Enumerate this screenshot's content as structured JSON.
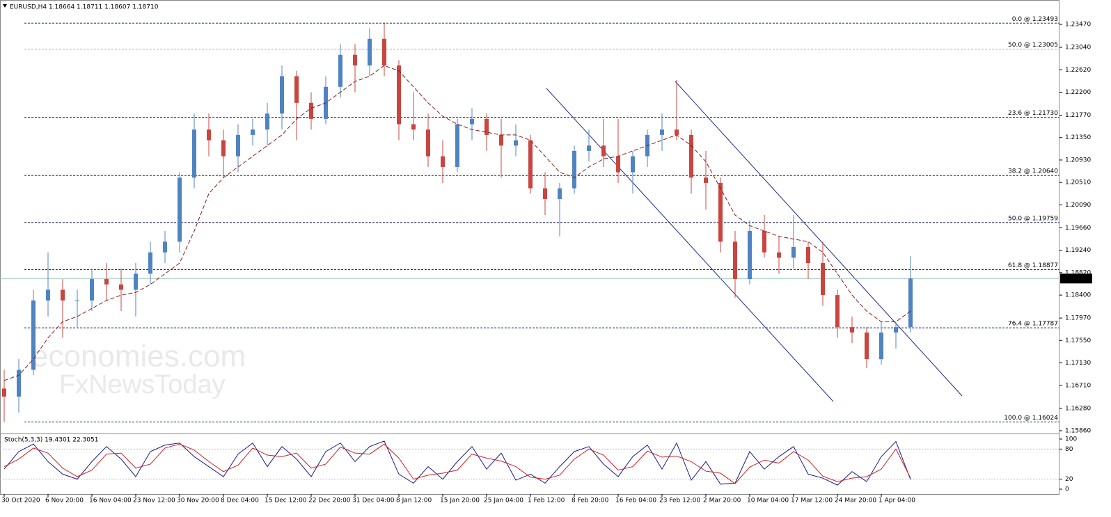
{
  "header": "EURUSD,H4  1.18664 1.18711 1.18607 1.18710",
  "watermark": [
    "economies.com",
    "FxNewsToday"
  ],
  "chart_data": [
    {
      "type": "candlestick",
      "categories": [
        "30 Oct 2020",
        null,
        null,
        "6 Nov 20:00",
        null,
        null,
        "16 Nov 04:00",
        null,
        null,
        "23 Nov 12:00",
        null,
        null,
        "30 Nov 20:00",
        null,
        null,
        "8 Dec 04:00",
        null,
        null,
        "15 Dec 12:00",
        null,
        null,
        "22 Dec 20:00",
        null,
        null,
        "31 Dec 04:00",
        null,
        null,
        "8 Jan 12:00",
        null,
        null,
        "15 Jan 20:00",
        null,
        null,
        "25 Jan 04:00",
        null,
        null,
        "1 Feb 12:00",
        null,
        null,
        "8 Feb 20:00",
        null,
        null,
        "16 Feb 04:00",
        null,
        null,
        "23 Feb 12:00",
        null,
        null,
        "2 Mar 20:00",
        null,
        null,
        "10 Mar 04:00",
        null,
        null,
        "17 Mar 12:00",
        null,
        null,
        "24 Mar 20:00",
        null,
        null,
        "1 Apr 04:00",
        null,
        null
      ],
      "open": [
        1.1665,
        1.165,
        1.17,
        1.183,
        1.185,
        1.183,
        1.183,
        1.187,
        1.186,
        1.185,
        1.188,
        1.192,
        1.194,
        1.206,
        1.215,
        1.213,
        1.21,
        1.214,
        1.215,
        1.218,
        1.225,
        1.22,
        1.217,
        1.223,
        1.229,
        1.227,
        1.232,
        1.227,
        1.216,
        1.215,
        1.21,
        1.208,
        1.216,
        1.217,
        1.214,
        1.212,
        1.213,
        1.204,
        1.202,
        1.204,
        1.211,
        1.212,
        1.21,
        1.207,
        1.21,
        1.214,
        1.215,
        1.214,
        1.206,
        1.205,
        1.194,
        1.187,
        1.196,
        1.192,
        1.191,
        1.193,
        1.19,
        1.184,
        1.178,
        1.177,
        1.172,
        1.177,
        1.178
      ],
      "high": [
        1.17,
        1.172,
        1.185,
        1.192,
        1.187,
        1.185,
        1.189,
        1.19,
        1.189,
        1.19,
        1.194,
        1.196,
        1.207,
        1.218,
        1.218,
        1.215,
        1.216,
        1.217,
        1.22,
        1.227,
        1.226,
        1.222,
        1.225,
        1.231,
        1.231,
        1.234,
        1.2349,
        1.228,
        1.222,
        1.218,
        1.213,
        1.217,
        1.219,
        1.218,
        1.217,
        1.216,
        1.214,
        1.207,
        1.205,
        1.212,
        1.215,
        1.217,
        1.217,
        1.211,
        1.215,
        1.218,
        1.2243,
        1.215,
        1.211,
        1.206,
        1.196,
        1.198,
        1.199,
        1.195,
        1.199,
        1.194,
        1.194,
        1.185,
        1.18,
        1.178,
        1.179,
        1.179,
        1.1913
      ],
      "low": [
        1.1602,
        1.162,
        1.169,
        1.18,
        1.176,
        1.178,
        1.181,
        1.183,
        1.181,
        1.18,
        1.186,
        1.19,
        1.192,
        1.204,
        1.21,
        1.206,
        1.207,
        1.212,
        1.212,
        1.215,
        1.213,
        1.215,
        1.216,
        1.221,
        1.222,
        1.225,
        1.225,
        1.213,
        1.213,
        1.208,
        1.205,
        1.207,
        1.213,
        1.211,
        1.206,
        1.21,
        1.203,
        1.199,
        1.195,
        1.203,
        1.209,
        1.208,
        1.205,
        1.203,
        1.208,
        1.211,
        1.213,
        1.203,
        1.2,
        1.192,
        1.1835,
        1.186,
        1.191,
        1.188,
        1.189,
        1.187,
        1.182,
        1.176,
        1.175,
        1.1703,
        1.171,
        1.174,
        1.177
      ],
      "close": [
        1.165,
        1.17,
        1.183,
        1.185,
        1.183,
        1.183,
        1.187,
        1.186,
        1.185,
        1.188,
        1.192,
        1.194,
        1.206,
        1.215,
        1.213,
        1.21,
        1.214,
        1.215,
        1.218,
        1.225,
        1.22,
        1.217,
        1.223,
        1.229,
        1.227,
        1.232,
        1.227,
        1.216,
        1.215,
        1.21,
        1.208,
        1.216,
        1.217,
        1.214,
        1.212,
        1.213,
        1.204,
        1.202,
        1.204,
        1.211,
        1.212,
        1.21,
        1.207,
        1.21,
        1.214,
        1.215,
        1.214,
        1.206,
        1.205,
        1.194,
        1.187,
        1.196,
        1.192,
        1.191,
        1.193,
        1.19,
        1.184,
        1.178,
        1.177,
        1.172,
        1.177,
        1.178,
        1.1871
      ],
      "ma": {
        "color": "#8b1a1a",
        "values": [
          1.168,
          1.169,
          1.172,
          1.176,
          1.179,
          1.18,
          1.1815,
          1.183,
          1.184,
          1.1845,
          1.186,
          1.188,
          1.19,
          1.196,
          1.203,
          1.206,
          1.208,
          1.21,
          1.212,
          1.214,
          1.217,
          1.219,
          1.22,
          1.222,
          1.224,
          1.225,
          1.227,
          1.226,
          1.223,
          1.22,
          1.2175,
          1.216,
          1.215,
          1.2145,
          1.214,
          1.214,
          1.213,
          1.21,
          1.207,
          1.206,
          1.208,
          1.2095,
          1.21,
          1.211,
          1.212,
          1.213,
          1.214,
          1.212,
          1.209,
          1.204,
          1.199,
          1.197,
          1.196,
          1.195,
          1.1945,
          1.194,
          1.192,
          1.188,
          1.184,
          1.181,
          1.179,
          1.179,
          1.181
        ]
      },
      "up_color": "#4f83c2",
      "down_color": "#c9453f",
      "ylim": [
        1.15821,
        1.23692
      ],
      "yticks": [
        {
          "value": 1.2347,
          "label": "1.23470"
        },
        {
          "value": 1.2304,
          "label": "1.23040"
        },
        {
          "value": 1.2262,
          "label": "1.22620"
        },
        {
          "value": 1.222,
          "label": "1.22200"
        },
        {
          "value": 1.2177,
          "label": "1.21770"
        },
        {
          "value": 1.2135,
          "label": "1.21350"
        },
        {
          "value": 1.2093,
          "label": "1.20930"
        },
        {
          "value": 1.2051,
          "label": "1.20510"
        },
        {
          "value": 1.2009,
          "label": "1.20090"
        },
        {
          "value": 1.1966,
          "label": "1.19660"
        },
        {
          "value": 1.1924,
          "label": "1.19240"
        },
        {
          "value": 1.1882,
          "label": "1.18820"
        },
        {
          "value": 1.184,
          "label": "1.18400"
        },
        {
          "value": 1.1797,
          "label": "1.17970"
        },
        {
          "value": 1.1755,
          "label": "1.17550"
        },
        {
          "value": 1.1713,
          "label": "1.17130"
        },
        {
          "value": 1.1671,
          "label": "1.16710"
        },
        {
          "value": 1.1628,
          "label": "1.16280"
        },
        {
          "value": 1.1586,
          "label": "1.15860"
        }
      ],
      "levels": [
        {
          "value": 1.23493,
          "label": "0.0 @ 1.23493",
          "color": "#1f2a6b"
        },
        {
          "value": 1.23005,
          "label": "50.0 @ 1.23005",
          "color": "#aaaaaa"
        },
        {
          "value": 1.2173,
          "label": "23.6 @ 1.21730",
          "color": "#1f2a6b"
        },
        {
          "value": 1.2064,
          "label": "38.2 @ 1.20640",
          "color": "#1f2a6b"
        },
        {
          "value": 1.19759,
          "label": "50.0 @ 1.19759",
          "color": "#1f2a6b"
        },
        {
          "value": 1.18877,
          "label": "61.8 @ 1.18877",
          "color": "#1f2a6b"
        },
        {
          "value": 1.17787,
          "label": "76.4 @ 1.17787",
          "color": "#1f2a6b"
        },
        {
          "value": 1.16024,
          "label": "100.0 @ 1.16024",
          "color": "#1f2a6b"
        }
      ],
      "current": {
        "value": 1.1871,
        "label": "1.18710"
      }
    },
    {
      "type": "line",
      "title": "Stoch(5,3,3) 19.4301 22.3051",
      "series": [
        {
          "color": "#1a1a8c",
          "values": [
            40,
            75,
            90,
            55,
            30,
            20,
            55,
            85,
            60,
            25,
            75,
            88,
            92,
            65,
            45,
            25,
            70,
            92,
            45,
            85,
            60,
            25,
            75,
            92,
            55,
            85,
            96,
            30,
            12,
            45,
            20,
            55,
            85,
            40,
            72,
            18,
            30,
            12,
            45,
            75,
            85,
            50,
            25,
            65,
            88,
            40,
            92,
            18,
            55,
            10,
            12,
            75,
            40,
            65,
            85,
            30,
            22,
            8,
            35,
            15,
            65,
            95,
            19.4301
          ]
        },
        {
          "color": "#d02020",
          "values": [
            45,
            60,
            82,
            72,
            42,
            25,
            38,
            70,
            72,
            42,
            50,
            82,
            90,
            78,
            55,
            35,
            48,
            82,
            68,
            65,
            72,
            42,
            50,
            84,
            72,
            70,
            90,
            62,
            20,
            28,
            32,
            38,
            70,
            62,
            56,
            45,
            24,
            20,
            28,
            60,
            80,
            68,
            38,
            45,
            76,
            64,
            66,
            55,
            36,
            32,
            11,
            44,
            58,
            52,
            75,
            58,
            26,
            15,
            22,
            25,
            40,
            80,
            22.3051
          ]
        }
      ],
      "ylim": [
        -9.7,
        106.9
      ],
      "yticks": [
        0,
        20,
        80,
        100
      ],
      "guides": [
        20,
        80
      ]
    }
  ]
}
